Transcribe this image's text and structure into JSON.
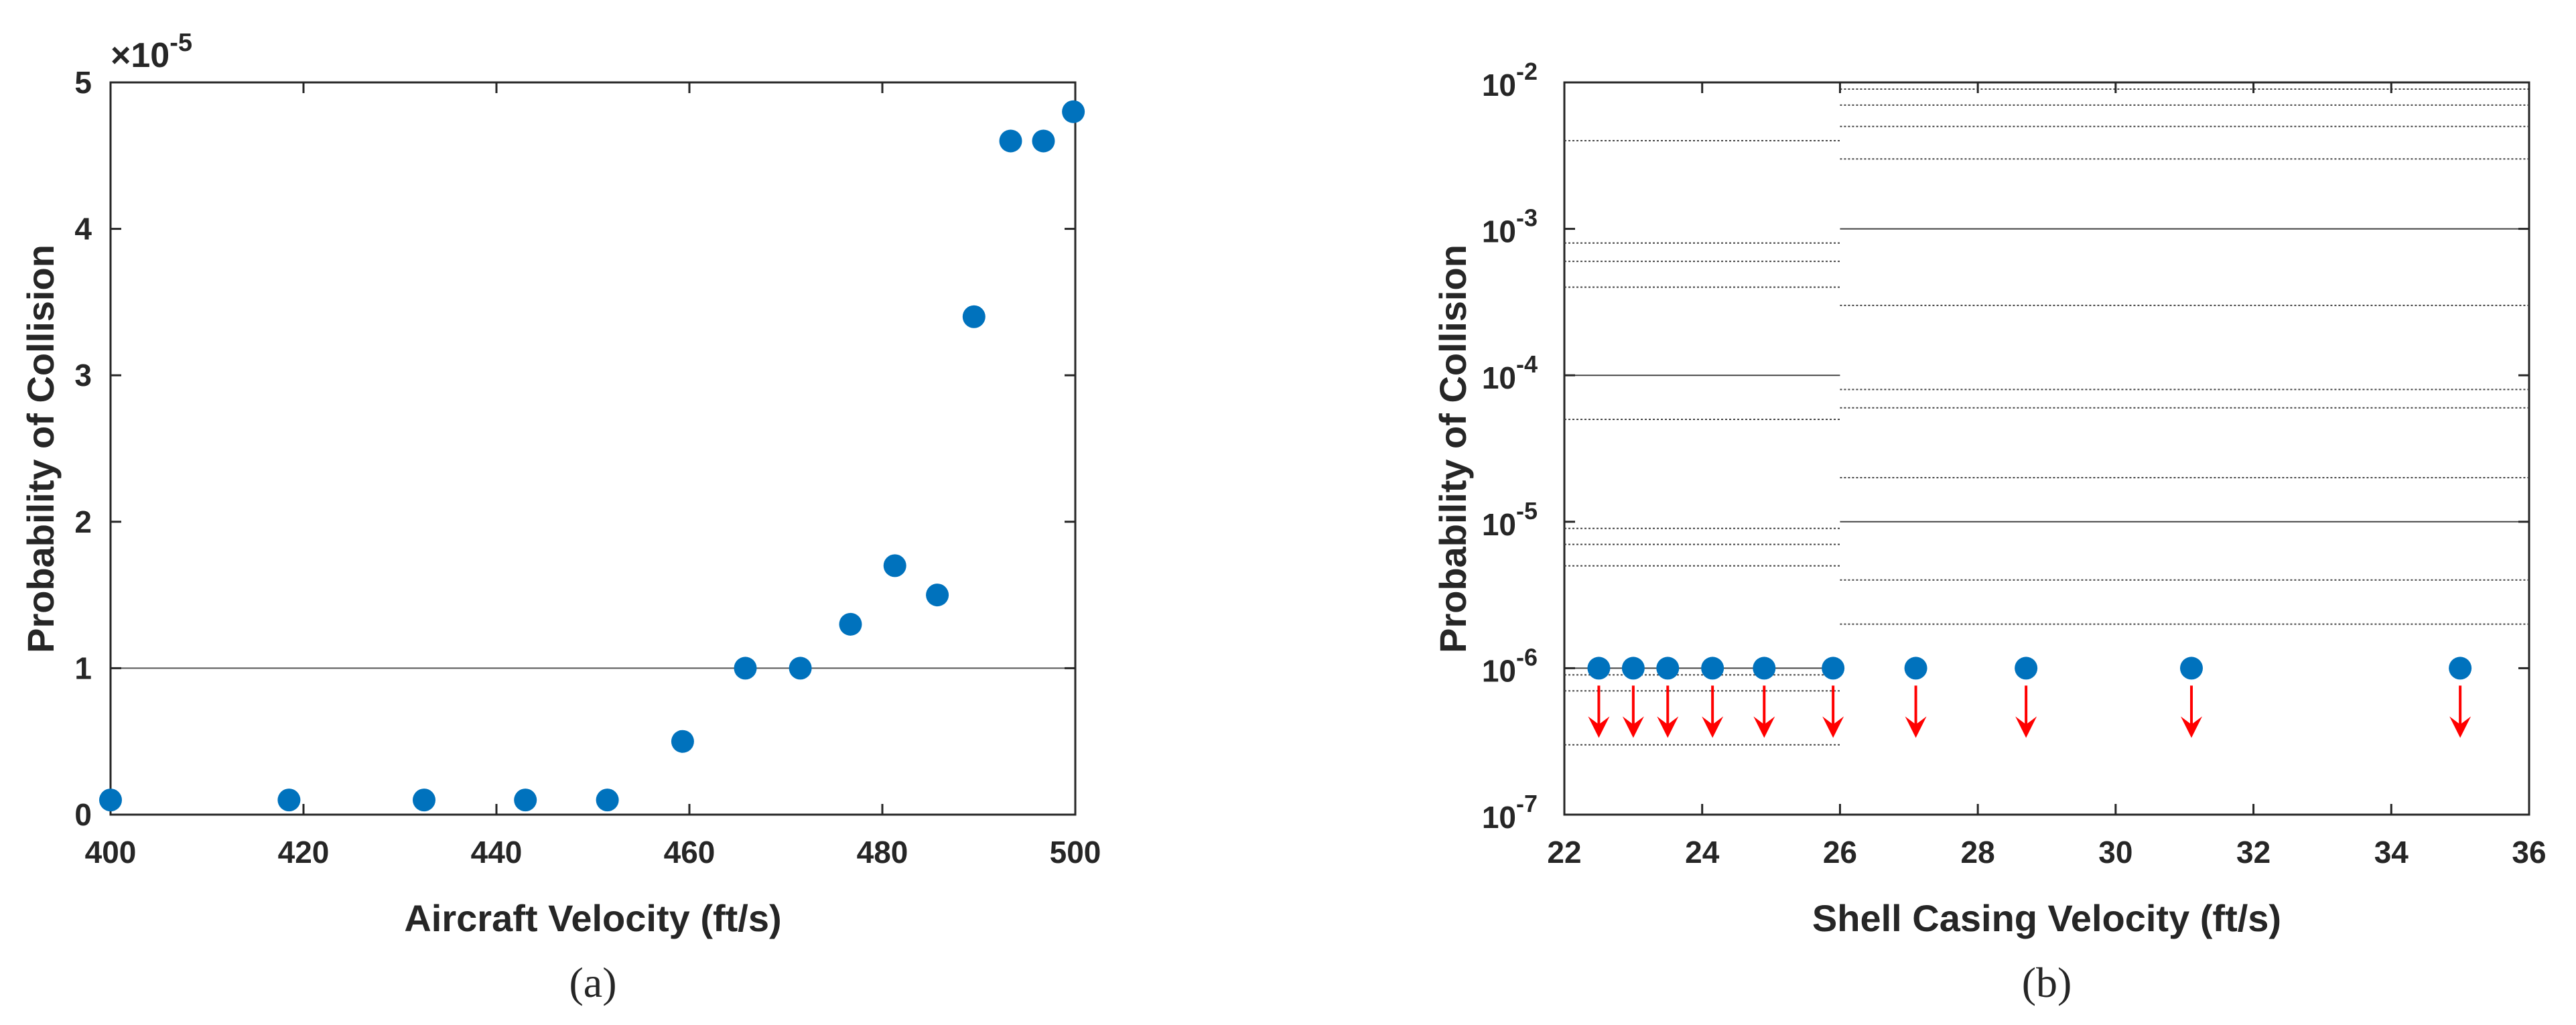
{
  "chart_data": [
    {
      "panel": "(a)",
      "type": "scatter",
      "xlabel": "Aircraft Velocity (ft/s)",
      "ylabel": "Probability of Collision",
      "y_multiplier": "×10",
      "y_multiplier_exp": "-5",
      "xlim": [
        400,
        500
      ],
      "ylim": [
        0,
        5
      ],
      "xticks": [
        "400",
        "420",
        "440",
        "460",
        "480",
        "500"
      ],
      "yticks": [
        "0",
        "1",
        "2",
        "3",
        "4",
        "5"
      ],
      "reference_line_y": 1,
      "marker_color": "#0072BD",
      "points": [
        [
          400,
          0.1
        ],
        [
          418.5,
          0.1
        ],
        [
          432.5,
          0.1
        ],
        [
          443,
          0.1
        ],
        [
          451.5,
          0.1
        ],
        [
          459.3,
          0.5
        ],
        [
          465.8,
          1.0
        ],
        [
          471.5,
          1.0
        ],
        [
          476.7,
          1.3
        ],
        [
          481.3,
          1.7
        ],
        [
          485.7,
          1.5
        ],
        [
          489.5,
          3.4
        ],
        [
          493.3,
          4.6
        ],
        [
          496.7,
          4.6
        ],
        [
          499.8,
          4.8
        ]
      ]
    },
    {
      "panel": "(b)",
      "type": "scatter",
      "xlabel": "Shell Casing Velocity (ft/s)",
      "ylabel": "Probability of Collision",
      "yscale": "log",
      "xlim": [
        22,
        36
      ],
      "ylim": [
        1e-07,
        0.01
      ],
      "xticks": [
        "22",
        "24",
        "26",
        "28",
        "30",
        "32",
        "34",
        "36"
      ],
      "ytick_exponents": [
        "-7",
        "-6",
        "-5",
        "-4",
        "-3",
        "-2"
      ],
      "ytick_base": "10",
      "marker_color": "#0072BD",
      "arrow_color": "#FF0000",
      "points": [
        [
          22.5,
          1e-06
        ],
        [
          23.0,
          1e-06
        ],
        [
          23.5,
          1e-06
        ],
        [
          24.15,
          1e-06
        ],
        [
          24.9,
          1e-06
        ],
        [
          25.9,
          1e-06
        ],
        [
          27.1,
          1e-06
        ],
        [
          28.7,
          1e-06
        ],
        [
          31.1,
          1e-06
        ],
        [
          35.0,
          1e-06
        ]
      ],
      "upper_bound_arrows": true
    }
  ]
}
